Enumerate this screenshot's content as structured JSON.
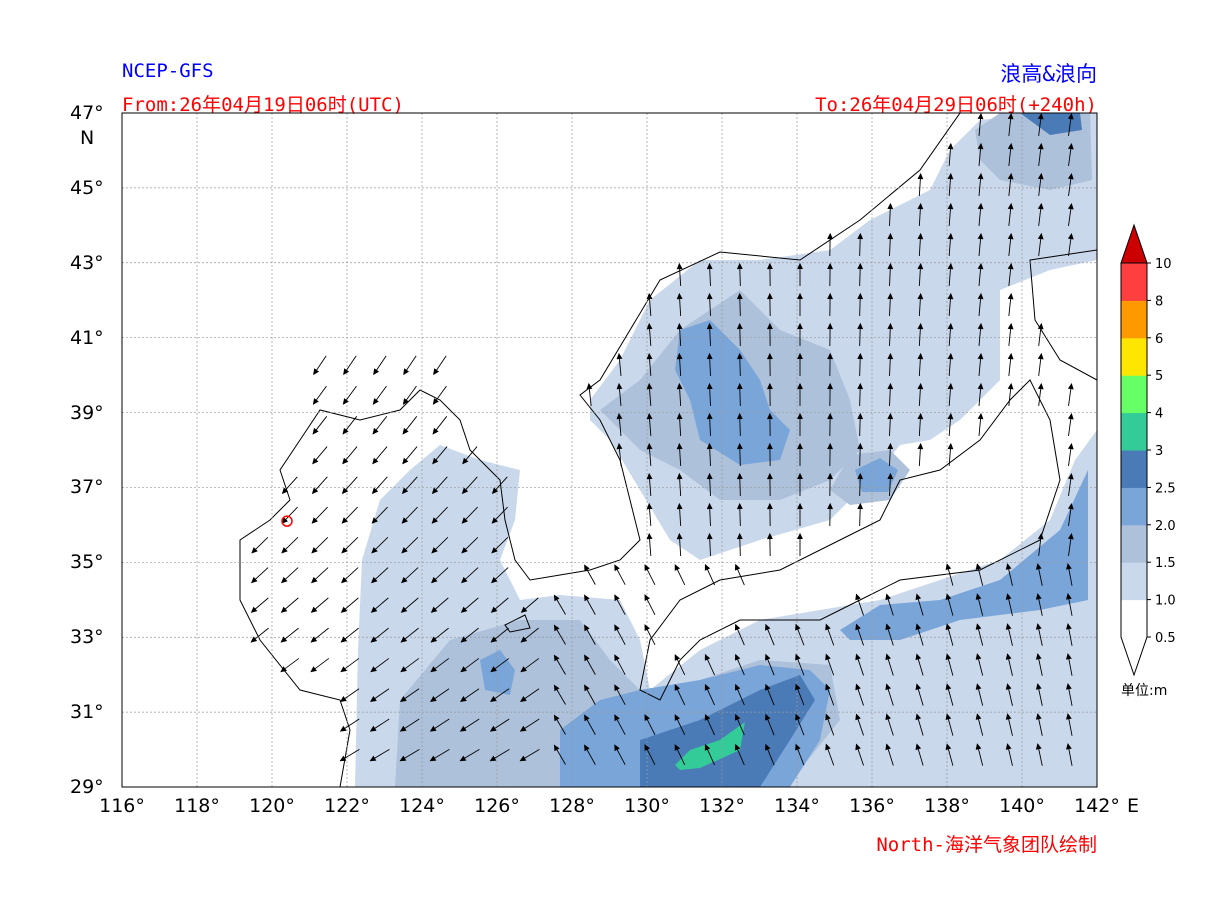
{
  "header": {
    "model": "NCEP-GFS",
    "product": "浪高&浪向",
    "from": "From:26年04月19日06时(UTC)",
    "to": "To:26年04月29日06时(+240h)"
  },
  "footer": {
    "credit": "North-海洋气象团队绘制"
  },
  "map": {
    "lon_range": [
      116,
      142
    ],
    "lat_range": [
      29,
      47
    ],
    "x_ticks": [
      "116°",
      "118°",
      "120°",
      "122°",
      "124°",
      "126°",
      "128°",
      "130°",
      "132°",
      "134°",
      "136°",
      "138°",
      "140°",
      "142°"
    ],
    "x_unit": "E",
    "y_ticks": [
      "47°",
      "45°",
      "43°",
      "41°",
      "39°",
      "37°",
      "35°",
      "33°",
      "31°",
      "29°"
    ],
    "y_unit": "N",
    "grid": true,
    "marker": {
      "lon": 120.4,
      "lat": 36.1,
      "color": "#ff0000"
    }
  },
  "colorbar": {
    "unit_label": "单位:m",
    "levels": [
      "0.5",
      "1.0",
      "1.5",
      "2.0",
      "2.5",
      "3",
      "4",
      "5",
      "6",
      "8",
      "10"
    ],
    "colors": [
      "#ffffff",
      "#cad8ec",
      "#adc1db",
      "#7aa5d8",
      "#4a7bb7",
      "#33cc99",
      "#66ff66",
      "#ffe600",
      "#ff9900",
      "#ff3f3f"
    ],
    "extend_max_color": "#cc0000"
  }
}
